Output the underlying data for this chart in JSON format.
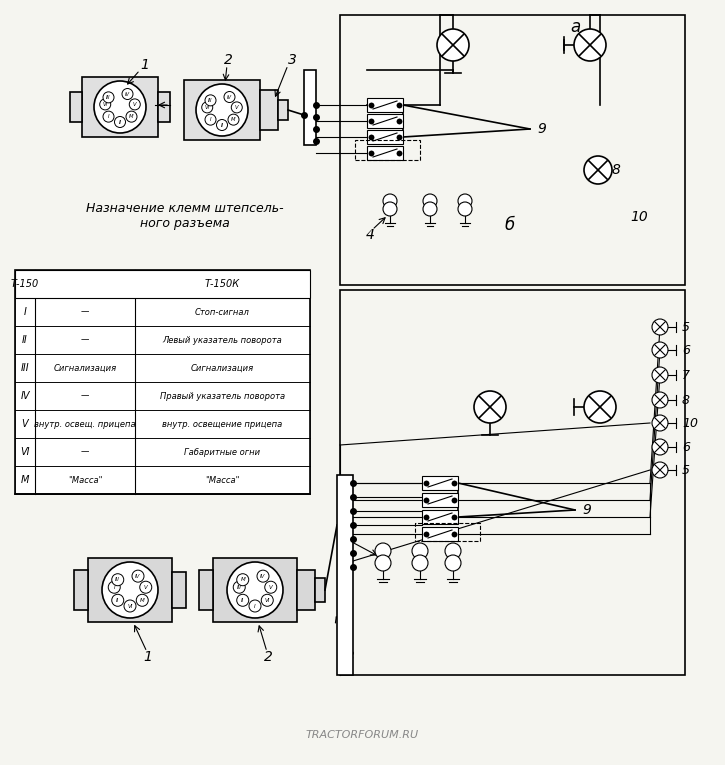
{
  "bg_color": "#f5f5f0",
  "title_text": "",
  "watermark": "TRACTORFORUM.RU",
  "table_title": "Назначение клемм штепсель-\nного разъема",
  "table_headers": [
    "",
    "Т-150",
    "Т-150К"
  ],
  "table_rows": [
    [
      "I",
      "—",
      "Стоп-сигнал"
    ],
    [
      "II",
      "—",
      "Левый указатель поворота"
    ],
    [
      "III",
      "Сигнализация",
      "Сигнализация"
    ],
    [
      "IV",
      "—",
      "Правый указатель поворота"
    ],
    [
      "V",
      "внутр. освещ. прицепа",
      "внутр. освещение прицепа"
    ],
    [
      "VI",
      "—",
      "Габаритные огни"
    ],
    [
      "M",
      "\"Масса\"",
      "\"Масса\""
    ]
  ],
  "label_a": "а",
  "label_b": "б",
  "labels_1234": [
    "1",
    "2",
    "3",
    "4"
  ],
  "labels_56789_10": [
    "5",
    "6",
    "7",
    "8",
    "9",
    "10"
  ]
}
